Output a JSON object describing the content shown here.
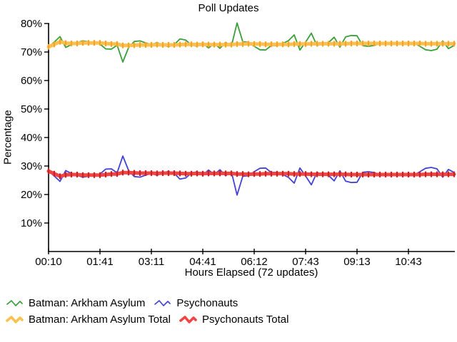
{
  "chart_data": {
    "type": "line",
    "title": "Poll Updates",
    "xlabel": "Hours Elapsed (72 updates)",
    "ylabel": "Percentage",
    "ylim": [
      0,
      80
    ],
    "n_points": 72,
    "grid": false,
    "legend_position": "bottom-left",
    "y_ticks": [
      {
        "value": 10,
        "label": "10%"
      },
      {
        "value": 20,
        "label": "20%"
      },
      {
        "value": 30,
        "label": "30%"
      },
      {
        "value": 40,
        "label": "40%"
      },
      {
        "value": 50,
        "label": "50%"
      },
      {
        "value": 60,
        "label": "60%"
      },
      {
        "value": 70,
        "label": "70%"
      },
      {
        "value": 80,
        "label": "80%"
      }
    ],
    "x_ticks": [
      {
        "index": 0,
        "label": "00:10"
      },
      {
        "index": 9,
        "label": "01:41"
      },
      {
        "index": 18,
        "label": "03:11"
      },
      {
        "index": 27,
        "label": "04:41"
      },
      {
        "index": 36,
        "label": "06:12"
      },
      {
        "index": 45,
        "label": "07:43"
      },
      {
        "index": 54,
        "label": "09:13"
      },
      {
        "index": 63,
        "label": "10:43"
      }
    ],
    "series": [
      {
        "name": "Batman: Arkham Asylum",
        "style": "thin",
        "color": "#39a039",
        "values": [
          71.8,
          73.5,
          75.4,
          71.6,
          72.6,
          73.3,
          73.9,
          73.6,
          73.3,
          72.8,
          71.1,
          71.0,
          72.4,
          66.5,
          71.5,
          73.7,
          73.9,
          73.2,
          72.6,
          73.3,
          72.3,
          71.9,
          72.6,
          74.6,
          74.2,
          72.5,
          72.0,
          73.3,
          71.4,
          73.0,
          71.3,
          73.4,
          72.0,
          80.2,
          73.6,
          73.4,
          72.0,
          70.8,
          70.7,
          72.3,
          72.2,
          73.0,
          74.0,
          76.0,
          70.7,
          73.5,
          76.6,
          72.2,
          73.2,
          73.3,
          75.2,
          71.7,
          75.3,
          75.8,
          75.7,
          72.2,
          72.0,
          72.3,
          73.0,
          72.8,
          73.2,
          72.7,
          73.0,
          73.5,
          73.2,
          72.0,
          70.8,
          70.5,
          71.0,
          73.9,
          71.2,
          72.3
        ]
      },
      {
        "name": "Psychonauts",
        "style": "thin",
        "color": "#4343d6",
        "values": [
          28.2,
          26.5,
          24.6,
          28.4,
          27.4,
          26.7,
          26.1,
          26.4,
          26.7,
          27.2,
          28.9,
          29.0,
          27.6,
          33.5,
          28.5,
          26.3,
          26.1,
          26.8,
          27.4,
          26.7,
          27.7,
          28.1,
          27.4,
          25.4,
          25.8,
          27.5,
          28.0,
          26.7,
          28.6,
          27.0,
          28.7,
          26.6,
          28.0,
          19.8,
          26.4,
          26.6,
          28.0,
          29.2,
          29.3,
          27.7,
          27.8,
          27.0,
          26.0,
          24.0,
          29.3,
          26.5,
          23.4,
          27.8,
          26.8,
          26.7,
          24.8,
          28.3,
          24.7,
          24.2,
          24.3,
          27.8,
          28.0,
          27.7,
          27.0,
          27.2,
          26.8,
          27.3,
          27.0,
          26.5,
          26.8,
          28.0,
          29.2,
          29.5,
          29.0,
          26.1,
          28.8,
          27.7
        ]
      },
      {
        "name": "Batman: Arkham Asylum Total",
        "style": "thick",
        "color": "#fdc04e",
        "marker_color": "#f2a52e",
        "values": [
          71.8,
          72.7,
          73.6,
          73.1,
          73.0,
          73.0,
          73.2,
          73.2,
          73.2,
          73.2,
          73.0,
          72.8,
          72.8,
          72.3,
          72.3,
          72.4,
          72.5,
          72.5,
          72.5,
          72.6,
          72.5,
          72.5,
          72.5,
          72.6,
          72.7,
          72.7,
          72.6,
          72.7,
          72.6,
          72.6,
          72.6,
          72.6,
          72.6,
          72.8,
          72.8,
          72.9,
          72.8,
          72.8,
          72.7,
          72.7,
          72.7,
          72.7,
          72.7,
          72.8,
          72.8,
          72.8,
          72.9,
          72.9,
          72.9,
          72.9,
          72.9,
          72.9,
          72.9,
          73.0,
          73.0,
          73.0,
          73.0,
          73.0,
          73.0,
          73.0,
          73.0,
          73.0,
          73.0,
          73.0,
          73.0,
          73.0,
          72.9,
          72.9,
          72.9,
          72.9,
          72.9,
          72.9
        ]
      },
      {
        "name": "Psychonauts Total",
        "style": "thick",
        "color": "#f34444",
        "marker_color": "#c42525",
        "values": [
          28.2,
          27.3,
          26.4,
          26.9,
          27.0,
          27.0,
          26.8,
          26.8,
          26.8,
          26.8,
          27.0,
          27.2,
          27.2,
          27.7,
          27.7,
          27.6,
          27.5,
          27.5,
          27.5,
          27.4,
          27.5,
          27.5,
          27.5,
          27.4,
          27.3,
          27.3,
          27.4,
          27.3,
          27.4,
          27.4,
          27.4,
          27.4,
          27.4,
          27.2,
          27.2,
          27.1,
          27.2,
          27.2,
          27.3,
          27.3,
          27.3,
          27.3,
          27.3,
          27.2,
          27.2,
          27.2,
          27.1,
          27.1,
          27.1,
          27.1,
          27.1,
          27.1,
          27.1,
          27.0,
          27.0,
          27.0,
          27.0,
          27.0,
          27.0,
          27.0,
          27.0,
          27.0,
          27.0,
          27.0,
          27.0,
          27.0,
          27.1,
          27.1,
          27.1,
          27.1,
          27.1,
          27.1
        ]
      }
    ],
    "axis_color": "#000000"
  }
}
